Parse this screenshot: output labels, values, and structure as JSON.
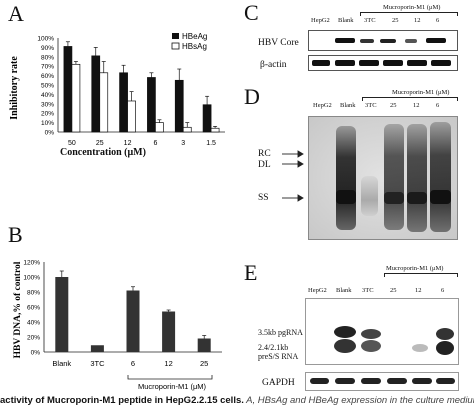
{
  "panels": {
    "A": {
      "letter": "A",
      "chart_data": {
        "type": "bar",
        "ylabel": "Inhibitory rate",
        "xlabel": "Concentration (μM)",
        "categories": [
          "50",
          "25",
          "12",
          "6",
          "3",
          "1.5"
        ],
        "yticks": [
          "0%",
          "10%",
          "20%",
          "30%",
          "40%",
          "50%",
          "60%",
          "70%",
          "80%",
          "90%",
          "100%"
        ],
        "ylim": [
          0,
          100
        ],
        "series": [
          {
            "name": "HBeAg",
            "color": "#111111",
            "values": [
              91,
              81,
              63,
              58,
              55,
              29
            ]
          },
          {
            "name": "HBsAg",
            "color": "#ffffff",
            "values": [
              72,
              63,
              33,
              10,
              5,
              4
            ]
          }
        ],
        "errors": [
          [
            5,
            9,
            8,
            5,
            12,
            9
          ],
          [
            3,
            12,
            10,
            3,
            5,
            2
          ]
        ],
        "legend": "top-right"
      }
    },
    "B": {
      "letter": "B",
      "chart_data": {
        "type": "bar",
        "ylabel": "HBV DNA,% of control",
        "categories": [
          "Blank",
          "3TC",
          "6",
          "12",
          "25"
        ],
        "group_label": "Mucroporin-M1 (μM)",
        "yticks": [
          "0%",
          "20%",
          "40%",
          "60%",
          "80%",
          "100%",
          "120%"
        ],
        "ylim": [
          0,
          120
        ],
        "series": [
          {
            "color": "#333333",
            "values": [
              100,
              9,
              82,
              54,
              18
            ]
          }
        ],
        "errors": [
          8,
          0,
          5,
          2,
          4
        ]
      }
    },
    "C": {
      "letter": "C",
      "group_label": "Mucroporin-M1 (μM)",
      "lanes": [
        "HepG2",
        "Blank",
        "3TC",
        "25",
        "12",
        "6"
      ],
      "bands": [
        "HBV Core",
        "β-actin"
      ]
    },
    "D": {
      "letter": "D",
      "group_label": "Mucroporin-M1 (μM)",
      "lanes": [
        "HepG2",
        "Blank",
        "3TC",
        "25",
        "12",
        "6"
      ],
      "markers": [
        "RC",
        "DL",
        "SS"
      ]
    },
    "E": {
      "letter": "E",
      "group_label": "Mucroporin-M1 (μM)",
      "lanes": [
        "HepG2",
        "Blank",
        "3TC",
        "25",
        "12",
        "6"
      ],
      "rna1": "3.5kb pgRNA",
      "rna2a": "2.4/2.1kb",
      "rna2b": "preS/S RNA",
      "loading": "GAPDH"
    }
  },
  "caption": {
    "bold": "activity of Mucroporin-M1 peptide in HepG2.2.15 cells.",
    "rest": " A, HBsAg and HBeAg expression in the culture medium"
  }
}
